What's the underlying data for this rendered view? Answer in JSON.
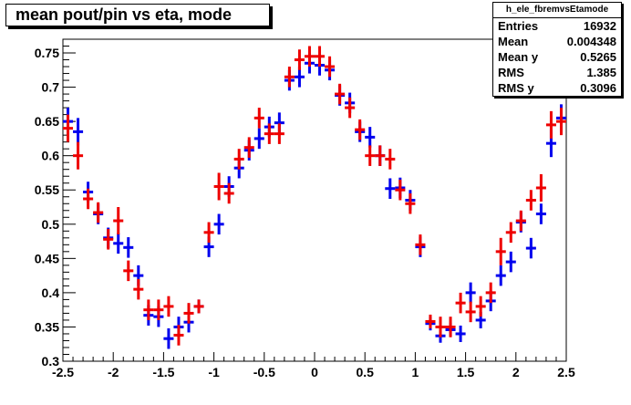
{
  "title": "mean pout/pin vs eta, mode",
  "stats": {
    "name": "h_ele_fbremvsEtamode",
    "rows": [
      {
        "label": "Entries",
        "value": "16932"
      },
      {
        "label": "Mean",
        "value": "0.004348"
      },
      {
        "label": "Mean y",
        "value": "0.5265"
      },
      {
        "label": "RMS",
        "value": "1.385"
      },
      {
        "label": "RMS y",
        "value": "0.3096"
      }
    ]
  },
  "chart_data": {
    "type": "scatter",
    "title": "mean pout/pin vs eta, mode",
    "xlim": [
      -2.5,
      2.5
    ],
    "ylim": [
      0.3,
      0.77
    ],
    "x_ticks": [
      -2.5,
      -2,
      -1.5,
      -1,
      -0.5,
      0,
      0.5,
      1,
      1.5,
      2,
      2.5
    ],
    "x_tick_labels": [
      "-2.5",
      "-2",
      "-1.5",
      "-1",
      "-0.5",
      "0",
      "0.5",
      "1",
      "1.5",
      "2",
      "2.5"
    ],
    "y_ticks": [
      0.3,
      0.35,
      0.4,
      0.45,
      0.5,
      0.55,
      0.6,
      0.65,
      0.7,
      0.75
    ],
    "y_tick_labels": [
      "0.3",
      "0.35",
      "0.4",
      "0.45",
      "0.5",
      "0.55",
      "0.6",
      "0.65",
      "0.7",
      "0.75"
    ],
    "bin_width": 0.1,
    "grid": false,
    "colors": {
      "blue": "#0000ee",
      "red": "#ee0000"
    },
    "series": [
      {
        "color": "blue",
        "points": [
          {
            "x": -2.45,
            "y": 0.65,
            "err": 0.02
          },
          {
            "x": -2.35,
            "y": 0.635,
            "err": 0.02
          },
          {
            "x": -2.25,
            "y": 0.547,
            "err": 0.015
          },
          {
            "x": -2.15,
            "y": 0.515,
            "err": 0.015
          },
          {
            "x": -2.05,
            "y": 0.48,
            "err": 0.015
          },
          {
            "x": -1.95,
            "y": 0.472,
            "err": 0.015
          },
          {
            "x": -1.85,
            "y": 0.466,
            "err": 0.015
          },
          {
            "x": -1.75,
            "y": 0.425,
            "err": 0.015
          },
          {
            "x": -1.65,
            "y": 0.367,
            "err": 0.015
          },
          {
            "x": -1.55,
            "y": 0.365,
            "err": 0.015
          },
          {
            "x": -1.45,
            "y": 0.333,
            "err": 0.015
          },
          {
            "x": -1.35,
            "y": 0.35,
            "err": 0.015
          },
          {
            "x": -1.25,
            "y": 0.357,
            "err": 0.015
          },
          {
            "x": -1.15,
            "y": 0.38,
            "err": 0.01
          },
          {
            "x": -1.05,
            "y": 0.467,
            "err": 0.015
          },
          {
            "x": -0.95,
            "y": 0.5,
            "err": 0.015
          },
          {
            "x": -0.85,
            "y": 0.555,
            "err": 0.015
          },
          {
            "x": -0.75,
            "y": 0.582,
            "err": 0.015
          },
          {
            "x": -0.65,
            "y": 0.608,
            "err": 0.015
          },
          {
            "x": -0.55,
            "y": 0.625,
            "err": 0.015
          },
          {
            "x": -0.45,
            "y": 0.642,
            "err": 0.015
          },
          {
            "x": -0.35,
            "y": 0.648,
            "err": 0.015
          },
          {
            "x": -0.25,
            "y": 0.71,
            "err": 0.015
          },
          {
            "x": -0.15,
            "y": 0.715,
            "err": 0.015
          },
          {
            "x": -0.05,
            "y": 0.735,
            "err": 0.015
          },
          {
            "x": 0.05,
            "y": 0.732,
            "err": 0.015
          },
          {
            "x": 0.15,
            "y": 0.725,
            "err": 0.015
          },
          {
            "x": 0.25,
            "y": 0.688,
            "err": 0.015
          },
          {
            "x": 0.35,
            "y": 0.677,
            "err": 0.015
          },
          {
            "x": 0.45,
            "y": 0.635,
            "err": 0.015
          },
          {
            "x": 0.55,
            "y": 0.627,
            "err": 0.015
          },
          {
            "x": 0.65,
            "y": 0.6,
            "err": 0.015
          },
          {
            "x": 0.75,
            "y": 0.552,
            "err": 0.015
          },
          {
            "x": 0.85,
            "y": 0.553,
            "err": 0.015
          },
          {
            "x": 0.95,
            "y": 0.535,
            "err": 0.015
          },
          {
            "x": 1.05,
            "y": 0.467,
            "err": 0.015
          },
          {
            "x": 1.15,
            "y": 0.355,
            "err": 0.01
          },
          {
            "x": 1.25,
            "y": 0.337,
            "err": 0.01
          },
          {
            "x": 1.35,
            "y": 0.346,
            "err": 0.01
          },
          {
            "x": 1.45,
            "y": 0.34,
            "err": 0.012
          },
          {
            "x": 1.55,
            "y": 0.4,
            "err": 0.015
          },
          {
            "x": 1.65,
            "y": 0.36,
            "err": 0.012
          },
          {
            "x": 1.75,
            "y": 0.388,
            "err": 0.015
          },
          {
            "x": 1.85,
            "y": 0.425,
            "err": 0.015
          },
          {
            "x": 1.95,
            "y": 0.445,
            "err": 0.015
          },
          {
            "x": 2.05,
            "y": 0.503,
            "err": 0.015
          },
          {
            "x": 2.15,
            "y": 0.465,
            "err": 0.015
          },
          {
            "x": 2.25,
            "y": 0.515,
            "err": 0.015
          },
          {
            "x": 2.35,
            "y": 0.618,
            "err": 0.02
          },
          {
            "x": 2.45,
            "y": 0.655,
            "err": 0.02
          }
        ]
      },
      {
        "color": "red",
        "points": [
          {
            "x": -2.45,
            "y": 0.64,
            "err": 0.02
          },
          {
            "x": -2.35,
            "y": 0.6,
            "err": 0.02
          },
          {
            "x": -2.25,
            "y": 0.537,
            "err": 0.015
          },
          {
            "x": -2.15,
            "y": 0.517,
            "err": 0.015
          },
          {
            "x": -2.05,
            "y": 0.478,
            "err": 0.015
          },
          {
            "x": -1.95,
            "y": 0.505,
            "err": 0.02
          },
          {
            "x": -1.85,
            "y": 0.432,
            "err": 0.015
          },
          {
            "x": -1.75,
            "y": 0.405,
            "err": 0.015
          },
          {
            "x": -1.65,
            "y": 0.375,
            "err": 0.015
          },
          {
            "x": -1.55,
            "y": 0.375,
            "err": 0.015
          },
          {
            "x": -1.45,
            "y": 0.38,
            "err": 0.015
          },
          {
            "x": -1.35,
            "y": 0.338,
            "err": 0.015
          },
          {
            "x": -1.25,
            "y": 0.37,
            "err": 0.015
          },
          {
            "x": -1.15,
            "y": 0.38,
            "err": 0.01
          },
          {
            "x": -1.05,
            "y": 0.488,
            "err": 0.015
          },
          {
            "x": -0.95,
            "y": 0.555,
            "err": 0.02
          },
          {
            "x": -0.85,
            "y": 0.545,
            "err": 0.015
          },
          {
            "x": -0.75,
            "y": 0.595,
            "err": 0.015
          },
          {
            "x": -0.65,
            "y": 0.612,
            "err": 0.015
          },
          {
            "x": -0.55,
            "y": 0.655,
            "err": 0.015
          },
          {
            "x": -0.45,
            "y": 0.632,
            "err": 0.015
          },
          {
            "x": -0.35,
            "y": 0.632,
            "err": 0.015
          },
          {
            "x": -0.25,
            "y": 0.715,
            "err": 0.015
          },
          {
            "x": -0.15,
            "y": 0.74,
            "err": 0.015
          },
          {
            "x": -0.05,
            "y": 0.745,
            "err": 0.015
          },
          {
            "x": 0.05,
            "y": 0.745,
            "err": 0.015
          },
          {
            "x": 0.15,
            "y": 0.73,
            "err": 0.015
          },
          {
            "x": 0.25,
            "y": 0.69,
            "err": 0.015
          },
          {
            "x": 0.35,
            "y": 0.67,
            "err": 0.015
          },
          {
            "x": 0.45,
            "y": 0.638,
            "err": 0.015
          },
          {
            "x": 0.55,
            "y": 0.6,
            "err": 0.015
          },
          {
            "x": 0.65,
            "y": 0.6,
            "err": 0.015
          },
          {
            "x": 0.75,
            "y": 0.595,
            "err": 0.015
          },
          {
            "x": 0.85,
            "y": 0.55,
            "err": 0.015
          },
          {
            "x": 0.95,
            "y": 0.53,
            "err": 0.015
          },
          {
            "x": 1.05,
            "y": 0.47,
            "err": 0.015
          },
          {
            "x": 1.15,
            "y": 0.358,
            "err": 0.01
          },
          {
            "x": 1.25,
            "y": 0.35,
            "err": 0.015
          },
          {
            "x": 1.35,
            "y": 0.35,
            "err": 0.015
          },
          {
            "x": 1.45,
            "y": 0.385,
            "err": 0.015
          },
          {
            "x": 1.55,
            "y": 0.372,
            "err": 0.015
          },
          {
            "x": 1.65,
            "y": 0.38,
            "err": 0.015
          },
          {
            "x": 1.75,
            "y": 0.4,
            "err": 0.015
          },
          {
            "x": 1.85,
            "y": 0.46,
            "err": 0.02
          },
          {
            "x": 1.95,
            "y": 0.488,
            "err": 0.015
          },
          {
            "x": 2.05,
            "y": 0.505,
            "err": 0.015
          },
          {
            "x": 2.15,
            "y": 0.535,
            "err": 0.015
          },
          {
            "x": 2.25,
            "y": 0.553,
            "err": 0.02
          },
          {
            "x": 2.35,
            "y": 0.645,
            "err": 0.02
          },
          {
            "x": 2.45,
            "y": 0.65,
            "err": 0.02
          }
        ]
      }
    ]
  }
}
